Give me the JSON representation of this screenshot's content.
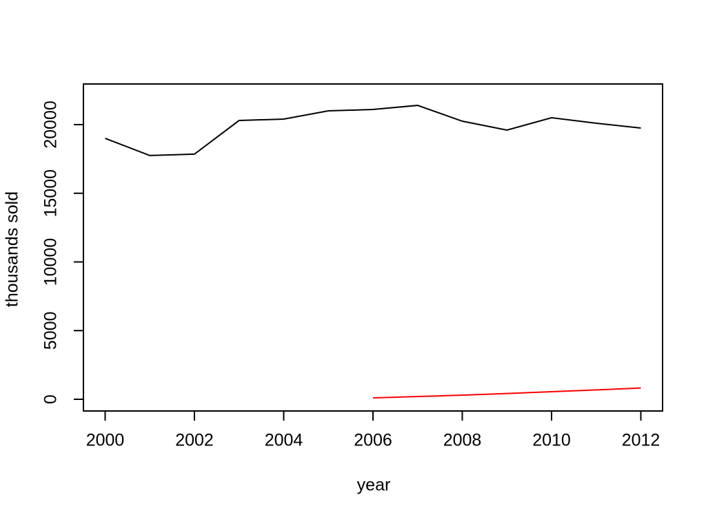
{
  "figure": {
    "background": "#ffffff",
    "axis_color": "#000000"
  },
  "chart_data": {
    "type": "line",
    "title": "",
    "xlabel": "year",
    "ylabel": "thousands sold",
    "xlim": [
      2000,
      2012
    ],
    "ylim": [
      0,
      21400
    ],
    "x_ticks": [
      2000,
      2002,
      2004,
      2006,
      2008,
      2010,
      2012
    ],
    "y_ticks": [
      0,
      5000,
      10000,
      15000,
      20000
    ],
    "grid": false,
    "legend": "none",
    "series": [
      {
        "name": "black-line",
        "color": "#000000",
        "x": [
          2000,
          2001,
          2002,
          2003,
          2004,
          2005,
          2006,
          2007,
          2008,
          2009,
          2010,
          2011,
          2012
        ],
        "values": [
          19000,
          17750,
          17850,
          20300,
          20400,
          21000,
          21100,
          21400,
          20250,
          19600,
          20500,
          20100,
          19750
        ]
      },
      {
        "name": "red-line",
        "color": "#ff0000",
        "x": [
          2006,
          2007,
          2008,
          2009,
          2010,
          2011,
          2012
        ],
        "values": [
          100,
          200,
          300,
          420,
          550,
          680,
          820
        ]
      }
    ]
  }
}
